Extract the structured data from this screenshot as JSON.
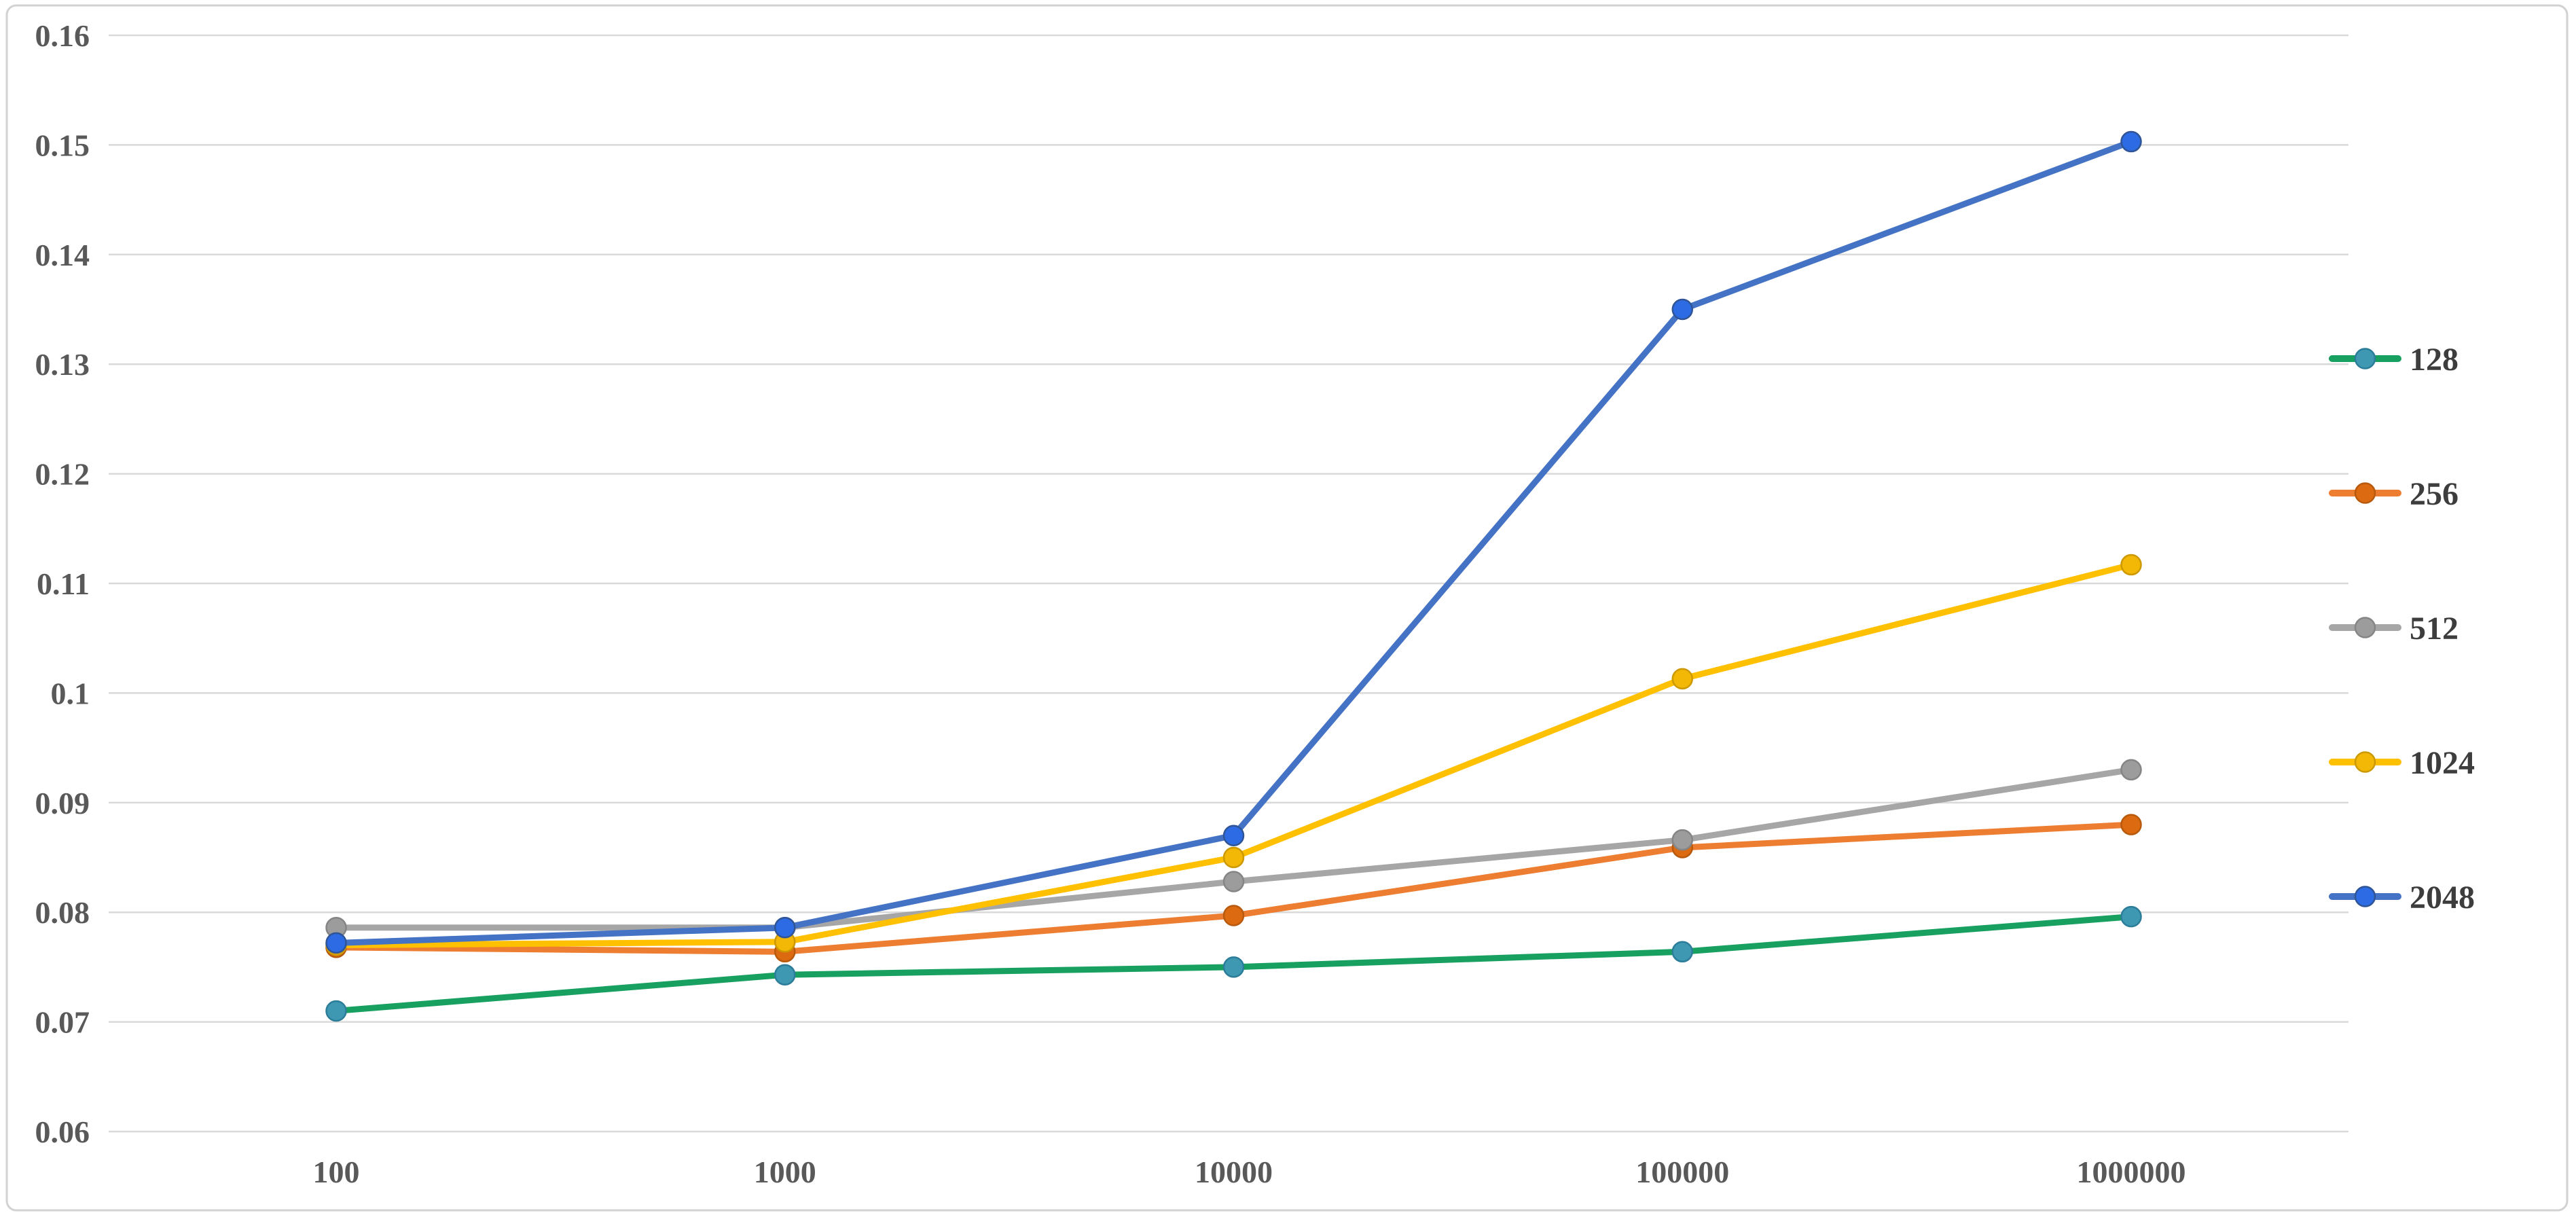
{
  "chart_data": {
    "type": "line",
    "title": "",
    "xlabel": "",
    "ylabel": "",
    "categories": [
      "100",
      "1000",
      "10000",
      "100000",
      "1000000"
    ],
    "series": [
      {
        "name": "128",
        "line_color": "#17A060",
        "marker_color": "#3F98B2",
        "marker_edge": "#2B7D99",
        "values": [
          0.071,
          0.0743,
          0.075,
          0.0764,
          0.0796
        ]
      },
      {
        "name": "256",
        "line_color": "#ED7D31",
        "marker_color": "#DB6A11",
        "marker_edge": "#B85A0E",
        "values": [
          0.0768,
          0.0764,
          0.0797,
          0.0859,
          0.088
        ]
      },
      {
        "name": "512",
        "line_color": "#A6A6A6",
        "marker_color": "#9C9C9C",
        "marker_edge": "#858585",
        "values": [
          0.0786,
          0.0786,
          0.0828,
          0.0866,
          0.093
        ]
      },
      {
        "name": "1024",
        "line_color": "#FFC000",
        "marker_color": "#F3B705",
        "marker_edge": "#CC9900",
        "values": [
          0.077,
          0.0773,
          0.085,
          0.1013,
          0.1117
        ]
      },
      {
        "name": "2048",
        "line_color": "#4472C4",
        "marker_color": "#2D6BE4",
        "marker_edge": "#2F5597",
        "values": [
          0.0772,
          0.0786,
          0.087,
          0.135,
          0.1503
        ]
      }
    ],
    "y_ticks": [
      "0.06",
      "0.07",
      "0.08",
      "0.09",
      "0.1",
      "0.11",
      "0.12",
      "0.13",
      "0.14",
      "0.15",
      "0.16"
    ],
    "ylim": [
      0.06,
      0.16
    ],
    "grid": "horizontal",
    "legend_position": "right",
    "legend_entries": [
      "128",
      "256",
      "512",
      "1024",
      "2048"
    ],
    "axis_text_color": "#595959",
    "legend_text_color": "#3D3D3D",
    "gridline_color": "#D9D9D9",
    "frame_color": "#D2D2D2",
    "background": "#FFFFFF"
  }
}
